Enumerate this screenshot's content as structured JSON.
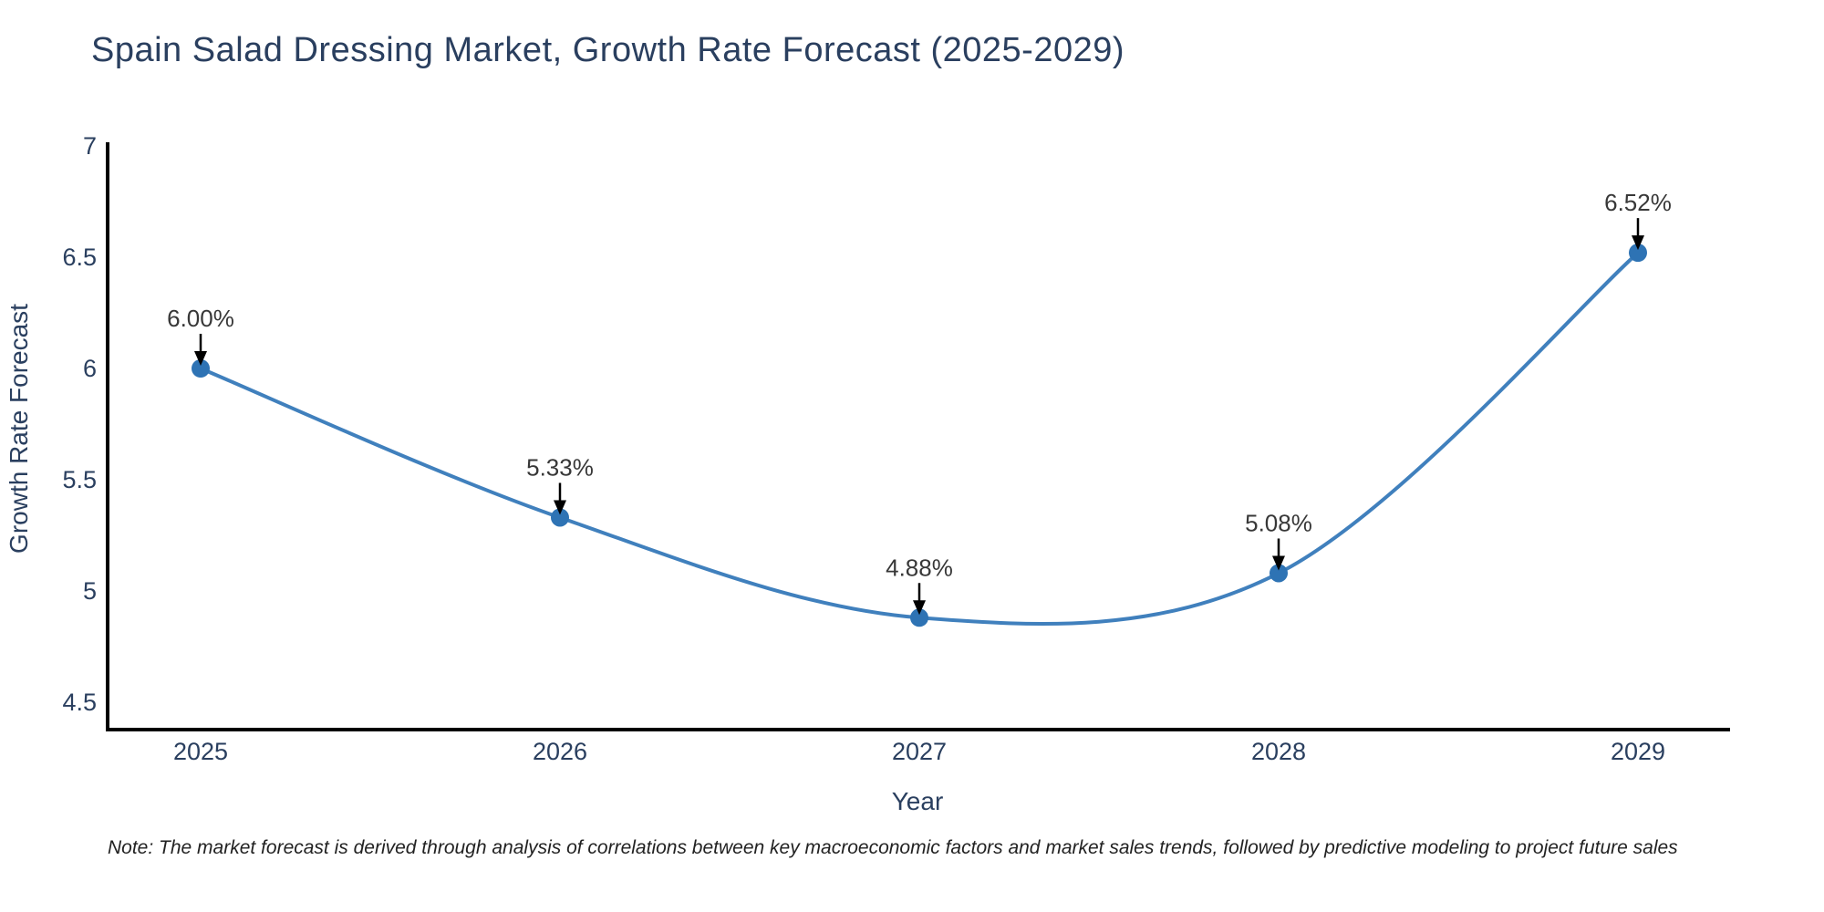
{
  "header": {
    "title": "Spain Salad Dressing Market, Growth Rate Forecast (2025-2029)"
  },
  "chart_data": {
    "type": "line",
    "line_shape": "spline",
    "x": [
      2025,
      2026,
      2027,
      2028,
      2029
    ],
    "y": [
      6.0,
      5.33,
      4.88,
      5.08,
      6.52
    ],
    "point_labels": [
      "6.00%",
      "5.33%",
      "4.88%",
      "5.08%",
      "6.52%"
    ],
    "title": "Spain Salad Dressing Market, Growth Rate Forecast (2025-2029)",
    "xlabel": "Year",
    "ylabel": "Growth Rate Forecast",
    "xticks": [
      "2025",
      "2026",
      "2027",
      "2028",
      "2029"
    ],
    "yticks": [
      4.5,
      5,
      5.5,
      6,
      6.5,
      7
    ],
    "ylim": [
      4.38,
      7
    ],
    "grid": false,
    "legend": "none",
    "annotation_style": "value labels with black down-arrows pointing at markers",
    "colors": {
      "line": "#4080bd",
      "marker": "#2e73b4",
      "axis": "#000000",
      "text": "#2a3f5f",
      "annotation_text": "#383838",
      "arrow": "#000000",
      "background": "#ffffff"
    }
  },
  "footnote": {
    "text": "Note: The market forecast is derived through analysis of correlations between key macroeconomic factors and market sales trends, followed by predictive modeling to project future sales"
  }
}
